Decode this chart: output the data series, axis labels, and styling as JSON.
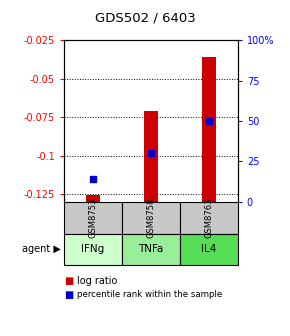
{
  "title": "GDS502 / 6403",
  "categories": [
    "GSM8753",
    "GSM8758",
    "GSM8763"
  ],
  "agents": [
    "IFNg",
    "TNFa",
    "IL4"
  ],
  "log_ratios": [
    -0.1255,
    -0.071,
    -0.036
  ],
  "percentile_ranks": [
    14,
    30,
    50
  ],
  "ylim_left": [
    -0.13,
    -0.025
  ],
  "ylim_right": [
    0,
    100
  ],
  "left_ticks": [
    -0.125,
    -0.1,
    -0.075,
    -0.05,
    -0.025
  ],
  "right_ticks": [
    0,
    25,
    50,
    75,
    100
  ],
  "left_tick_labels": [
    "-0.125",
    "-0.1",
    "-0.075",
    "-0.05",
    "-0.025"
  ],
  "right_tick_labels": [
    "0",
    "25",
    "50",
    "75",
    "100%"
  ],
  "bar_color": "#cc0000",
  "dot_color": "#0000cc",
  "gsm_bg": "#c8c8c8",
  "agent_bg_colors": [
    "#ccffcc",
    "#99ee99",
    "#55dd55"
  ],
  "legend_bar_color": "#cc0000",
  "legend_dot_color": "#0000cc",
  "agent_label": "agent"
}
